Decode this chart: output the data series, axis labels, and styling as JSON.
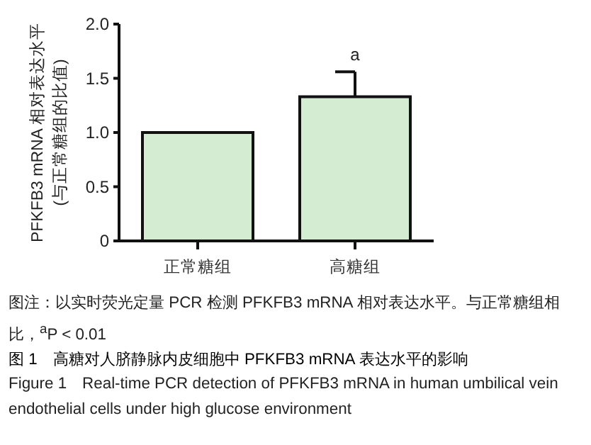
{
  "chart_data": {
    "type": "bar",
    "title": "图 1　高糖对人脐静脉内皮细胞中 PFKFB3 mRNA 表达水平的影响",
    "subtitle": "Figure 1　Real-time PCR detection of PFKFB3 mRNA in human umbilical vein endothelial cells under high glucose environment",
    "ylabel": "PFKFB3 mRNA 相对表达水平\n(与正常糖组的比值)",
    "categories": [
      "正常糖组",
      "高糖组"
    ],
    "values": [
      1.0,
      1.33
    ],
    "errors": [
      null,
      [
        1.33,
        1.56
      ]
    ],
    "color": "#d4ecd2",
    "ylim": [
      0,
      2.0
    ],
    "yticks": [
      0,
      0.5,
      {
        "value": 1.0,
        "label": "1.0"
      },
      1.5,
      {
        "value": 2.0,
        "label": "2.0"
      }
    ],
    "annotations": [
      {
        "text": "a",
        "x": "高糖组",
        "y": 1.56
      },
      "图注：以实时荧光定量 PCR 检测 PFKFB3 mRNA 相对表达水平。与正常糖组相比，$^{a}$P < 0.01"
    ]
  }
}
